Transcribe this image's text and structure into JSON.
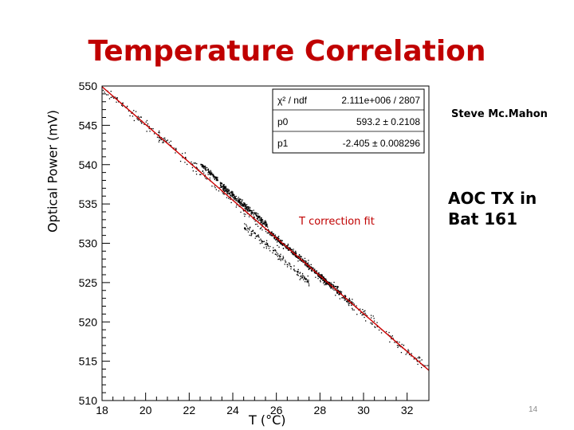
{
  "slide": {
    "author": "Steve Mc.Mahon",
    "annotation_line1": "AOC TX in",
    "annotation_line2": "Bat 161",
    "page_number": "14"
  },
  "chart_data": {
    "type": "scatter",
    "title": "Temperature Correlation",
    "xlabel": "T (°C)",
    "ylabel": "Optical Power (mV)",
    "xlim": [
      18,
      33
    ],
    "ylim": [
      510,
      550
    ],
    "xticks": [
      18,
      20,
      22,
      24,
      26,
      28,
      30,
      32
    ],
    "yticks": [
      510,
      515,
      520,
      525,
      530,
      535,
      540,
      545,
      550
    ],
    "grid": false,
    "marker_color": "#000000",
    "fit_color": "#cc0000",
    "fit": {
      "label": "T correction fit",
      "p0": 593.2,
      "p1": -2.405,
      "x_range": [
        18,
        33
      ]
    },
    "stats_box": {
      "position": "top-right",
      "rows": [
        {
          "name": "χ² / ndf",
          "value": "2.111e+006 / 2807"
        },
        {
          "name": "p0",
          "value": "593.2 ± 0.2108"
        },
        {
          "name": "p1",
          "value": "-2.405 ± 0.008296"
        }
      ]
    },
    "clusters": [
      {
        "x": [
          18.0,
          33.0
        ],
        "spread": 1.0,
        "n": 420
      },
      {
        "x": [
          22.5,
          23.3
        ],
        "offset": 1.0,
        "spread": 0.4,
        "n": 90
      },
      {
        "x": [
          23.4,
          25.6
        ],
        "offset": 0.6,
        "spread": 0.6,
        "n": 320
      },
      {
        "x": [
          25.6,
          28.5
        ],
        "offset": 0.0,
        "spread": 0.45,
        "n": 360
      },
      {
        "x": [
          28.0,
          29.5
        ],
        "offset": 0.0,
        "spread": 0.55,
        "n": 140
      },
      {
        "x": [
          24.5,
          27.5
        ],
        "offset": -2.0,
        "spread": 0.8,
        "n": 160
      }
    ]
  }
}
